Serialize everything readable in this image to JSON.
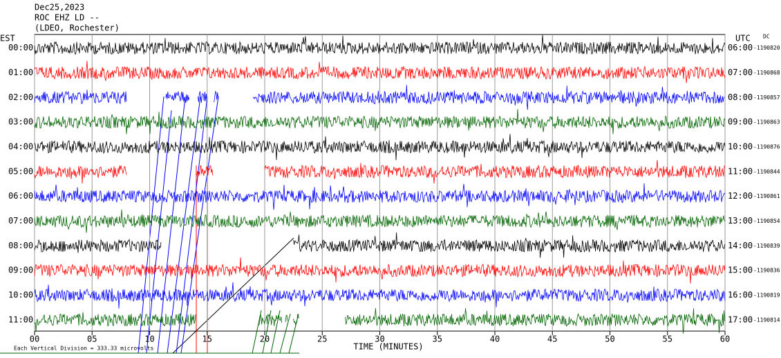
{
  "chart_data": {
    "type": "seismogram",
    "title": [
      "Dec25,2023",
      "ROC EHZ LD --",
      "(LDEO, Rochester)"
    ],
    "left_axis_label": "EST",
    "right_axis_label": "UTC",
    "dc_label": "DC",
    "xlabel": "TIME (MINUTES)",
    "footnote": "Each Vertical Division =  333.33 microvolts",
    "xlim": [
      0,
      60
    ],
    "xticks": [
      {
        "value": 0,
        "label": "00"
      },
      {
        "value": 5,
        "label": "05"
      },
      10,
      15,
      20,
      25,
      30,
      35,
      40,
      45,
      50,
      55,
      60
    ],
    "grid": true,
    "rows": [
      {
        "left": "00:00",
        "right": "06:00",
        "dc": -1190820,
        "color": "#000000",
        "segments": [
          [
            0,
            60
          ]
        ]
      },
      {
        "left": "01:00",
        "right": "07:00",
        "dc": -1190868,
        "color": "#ff0000",
        "segments": [
          [
            0,
            60
          ]
        ]
      },
      {
        "left": "02:00",
        "right": "08:00",
        "dc": -1190857,
        "color": "#0000ff",
        "segments": [
          [
            0,
            8
          ],
          [
            11.4,
            13.5
          ],
          [
            14.2,
            15
          ],
          [
            15.6,
            16
          ],
          [
            19,
            60
          ]
        ]
      },
      {
        "left": "03:00",
        "right": "09:00",
        "dc": -1190863,
        "color": "#006400",
        "segments": [
          [
            0,
            60
          ]
        ]
      },
      {
        "left": "04:00",
        "right": "10:00",
        "dc": -1190876,
        "color": "#000000",
        "segments": [
          [
            0,
            60
          ]
        ]
      },
      {
        "left": "05:00",
        "right": "11:00",
        "dc": -1190844,
        "color": "#ff0000",
        "segments": [
          [
            0,
            8
          ],
          [
            14.1,
            15.5
          ],
          [
            20,
            60
          ]
        ]
      },
      {
        "left": "06:00",
        "right": "12:00",
        "dc": -1190861,
        "color": "#0000ff",
        "segments": [
          [
            0,
            60
          ]
        ]
      },
      {
        "left": "07:00",
        "right": "13:00",
        "dc": -1190854,
        "color": "#006400",
        "segments": [
          [
            0,
            60
          ]
        ]
      },
      {
        "left": "08:00",
        "right": "14:00",
        "dc": -1190839,
        "color": "#000000",
        "segments": [
          [
            0,
            11
          ],
          [
            22.5,
            60
          ]
        ]
      },
      {
        "left": "09:00",
        "right": "15:00",
        "dc": -1190836,
        "color": "#ff0000",
        "segments": [
          [
            0,
            60
          ]
        ]
      },
      {
        "left": "10:00",
        "right": "16:00",
        "dc": -1190819,
        "color": "#0000ff",
        "segments": [
          [
            0,
            60
          ]
        ]
      },
      {
        "left": "11:00",
        "right": "17:00",
        "dc": -1190814,
        "color": "#006400",
        "segments": [
          [
            0,
            14
          ],
          [
            19.5,
            21.5
          ],
          [
            21.8,
            22
          ],
          [
            22.5,
            23
          ],
          [
            27,
            60
          ]
        ]
      }
    ]
  }
}
